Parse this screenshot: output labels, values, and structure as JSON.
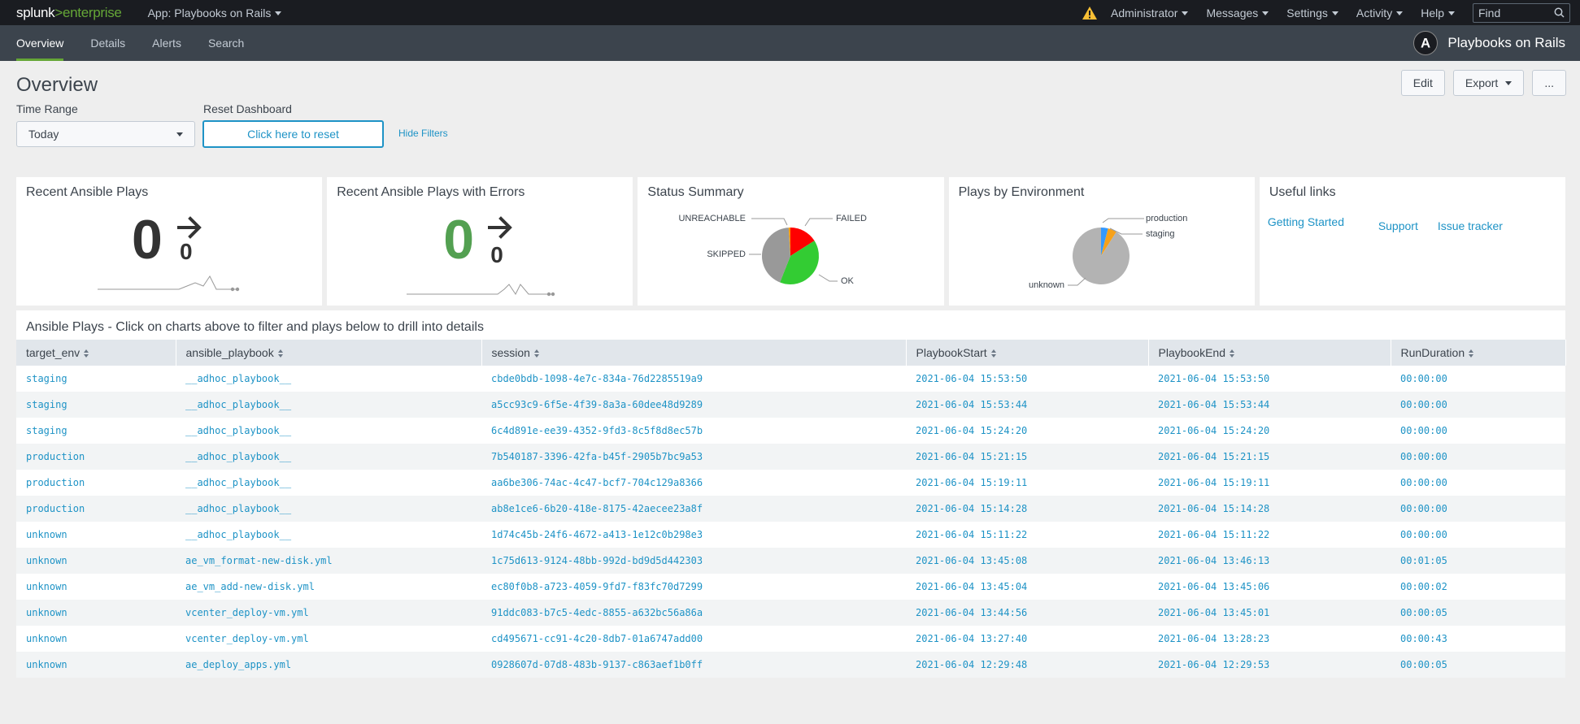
{
  "topbar": {
    "logo_splunk": "splunk",
    "logo_gt": ">",
    "logo_enterprise": "enterprise",
    "app_menu": "App: Playbooks on Rails",
    "menus": [
      "Administrator",
      "Messages",
      "Settings",
      "Activity",
      "Help"
    ],
    "find_placeholder": "Find",
    "warning_color": "#f8be34"
  },
  "nav": {
    "items": [
      "Overview",
      "Details",
      "Alerts",
      "Search"
    ],
    "active": "Overview",
    "app_name": "Playbooks on Rails",
    "app_logo_letter": "A"
  },
  "dashboard": {
    "title": "Overview",
    "buttons": {
      "edit": "Edit",
      "export": "Export",
      "more": "..."
    },
    "filters": {
      "time_range_label": "Time Range",
      "time_range_value": "Today",
      "reset_label": "Reset Dashboard",
      "reset_button": "Click here to reset",
      "hide_filters": "Hide Filters"
    }
  },
  "panels": {
    "recent_plays": {
      "title": "Recent Ansible Plays",
      "value": "0",
      "delta": "0",
      "color": "#333333"
    },
    "recent_errors": {
      "title": "Recent Ansible Plays with Errors",
      "value": "0",
      "delta": "0",
      "color": "#53a051"
    },
    "status_summary": {
      "title": "Status Summary",
      "labels": {
        "unreachable": "UNREACHABLE",
        "failed": "FAILED",
        "skipped": "SKIPPED",
        "ok": "OK"
      }
    },
    "plays_by_env": {
      "title": "Plays by Environment",
      "labels": {
        "production": "production",
        "staging": "staging",
        "unknown": "unknown"
      }
    },
    "useful_links": {
      "title": "Useful links",
      "links": [
        "Getting Started",
        "Support",
        "Issue tracker"
      ]
    }
  },
  "chart_data": [
    {
      "type": "pie",
      "title": "Status Summary",
      "categories": [
        "FAILED",
        "OK",
        "SKIPPED",
        "UNREACHABLE"
      ],
      "values": [
        16,
        40,
        43,
        1
      ],
      "colors": [
        "#ff0000",
        "#33cc33",
        "#999999",
        "#ff9900"
      ]
    },
    {
      "type": "pie",
      "title": "Plays by Environment",
      "categories": [
        "production",
        "staging",
        "unknown"
      ],
      "values": [
        4,
        5,
        91
      ],
      "colors": [
        "#3399ff",
        "#f6a11a",
        "#b3b3b3"
      ]
    }
  ],
  "table": {
    "title": "Ansible Plays - Click on charts above to filter and plays below to drill into details",
    "columns": [
      "target_env",
      "ansible_playbook",
      "session",
      "PlaybookStart",
      "PlaybookEnd",
      "RunDuration"
    ],
    "rows": [
      [
        "staging",
        "__adhoc_playbook__",
        "cbde0bdb-1098-4e7c-834a-76d2285519a9",
        "2021-06-04 15:53:50",
        "2021-06-04 15:53:50",
        "00:00:00"
      ],
      [
        "staging",
        "__adhoc_playbook__",
        "a5cc93c9-6f5e-4f39-8a3a-60dee48d9289",
        "2021-06-04 15:53:44",
        "2021-06-04 15:53:44",
        "00:00:00"
      ],
      [
        "staging",
        "__adhoc_playbook__",
        "6c4d891e-ee39-4352-9fd3-8c5f8d8ec57b",
        "2021-06-04 15:24:20",
        "2021-06-04 15:24:20",
        "00:00:00"
      ],
      [
        "production",
        "__adhoc_playbook__",
        "7b540187-3396-42fa-b45f-2905b7bc9a53",
        "2021-06-04 15:21:15",
        "2021-06-04 15:21:15",
        "00:00:00"
      ],
      [
        "production",
        "__adhoc_playbook__",
        "aa6be306-74ac-4c47-bcf7-704c129a8366",
        "2021-06-04 15:19:11",
        "2021-06-04 15:19:11",
        "00:00:00"
      ],
      [
        "production",
        "__adhoc_playbook__",
        "ab8e1ce6-6b20-418e-8175-42aecee23a8f",
        "2021-06-04 15:14:28",
        "2021-06-04 15:14:28",
        "00:00:00"
      ],
      [
        "unknown",
        "__adhoc_playbook__",
        "1d74c45b-24f6-4672-a413-1e12c0b298e3",
        "2021-06-04 15:11:22",
        "2021-06-04 15:11:22",
        "00:00:00"
      ],
      [
        "unknown",
        "ae_vm_format-new-disk.yml",
        "1c75d613-9124-48bb-992d-bd9d5d442303",
        "2021-06-04 13:45:08",
        "2021-06-04 13:46:13",
        "00:01:05"
      ],
      [
        "unknown",
        "ae_vm_add-new-disk.yml",
        "ec80f0b8-a723-4059-9fd7-f83fc70d7299",
        "2021-06-04 13:45:04",
        "2021-06-04 13:45:06",
        "00:00:02"
      ],
      [
        "unknown",
        "vcenter_deploy-vm.yml",
        "91ddc083-b7c5-4edc-8855-a632bc56a86a",
        "2021-06-04 13:44:56",
        "2021-06-04 13:45:01",
        "00:00:05"
      ],
      [
        "unknown",
        "vcenter_deploy-vm.yml",
        "cd495671-cc91-4c20-8db7-01a6747add00",
        "2021-06-04 13:27:40",
        "2021-06-04 13:28:23",
        "00:00:43"
      ],
      [
        "unknown",
        "ae_deploy_apps.yml",
        "0928607d-07d8-483b-9137-c863aef1b0ff",
        "2021-06-04 12:29:48",
        "2021-06-04 12:29:53",
        "00:00:05"
      ]
    ]
  }
}
